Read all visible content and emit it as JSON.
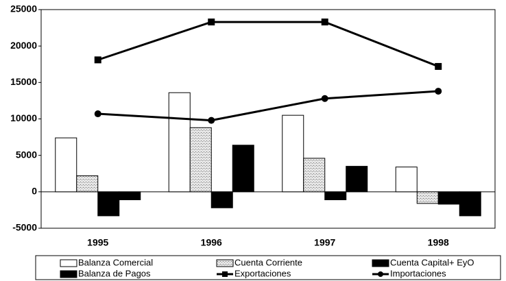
{
  "chart_data": {
    "type": "bar",
    "categories": [
      "1995",
      "1996",
      "1997",
      "1998"
    ],
    "series": [
      {
        "name": "Balanza Comercial",
        "type": "bar",
        "color": "#ffffff",
        "values": [
          7400,
          13600,
          10500,
          3400
        ]
      },
      {
        "name": "Cuenta Corriente",
        "type": "bar",
        "color": "#d4d4d4",
        "values": [
          2200,
          8800,
          4600,
          -1600
        ]
      },
      {
        "name": "Cuenta Capital+ EyO",
        "type": "bar",
        "color": "#000000",
        "values": [
          -3300,
          -2200,
          -1100,
          -1700
        ]
      },
      {
        "name": "Balanza de Pagos",
        "type": "bar",
        "color": "#000000",
        "values": [
          -1100,
          6400,
          3500,
          -3300
        ]
      },
      {
        "name": "Exportaciones",
        "type": "line",
        "marker": "square",
        "color": "#000000",
        "values": [
          18100,
          23300,
          23300,
          17200
        ]
      },
      {
        "name": "Importaciones",
        "type": "line",
        "marker": "circle",
        "color": "#000000",
        "values": [
          10700,
          9800,
          12800,
          13800
        ]
      }
    ],
    "ylim": [
      -5000,
      25000
    ],
    "yticks": [
      -5000,
      0,
      5000,
      10000,
      15000,
      20000,
      25000
    ],
    "grid": false,
    "legend": "bottom"
  }
}
